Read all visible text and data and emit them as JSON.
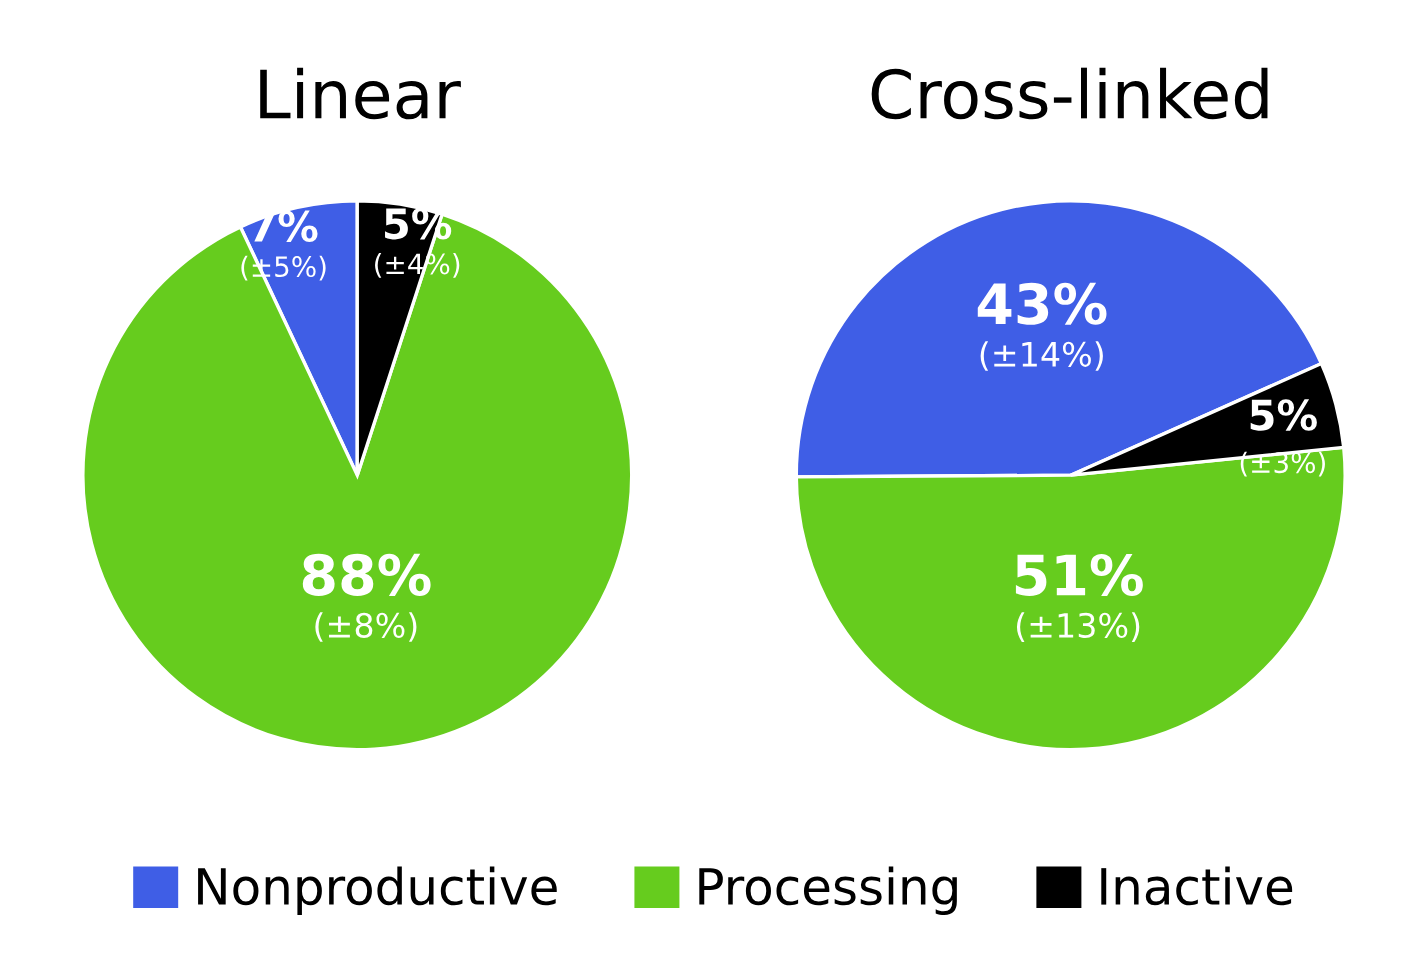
{
  "chart_data": [
    {
      "type": "pie",
      "title": "Linear",
      "categories": [
        "Nonproductive",
        "Processing",
        "Inactive"
      ],
      "values": [
        7,
        88,
        5
      ],
      "value_labels": [
        "7%",
        "88%",
        "5%"
      ],
      "annotations": [
        "(±5%)",
        "(±8%)",
        "(±4%)"
      ],
      "colors": [
        "#3f5ee6",
        "#66cc1e",
        "#000000"
      ],
      "legend": "bottom"
    },
    {
      "type": "pie",
      "title": "Cross-linked",
      "categories": [
        null,
        null,
        null
      ],
      "values": [
        43,
        51,
        5
      ],
      "value_labels": [
        "43%",
        "51%",
        "5%"
      ],
      "annotations": [
        "(±14%)",
        "(±13%)",
        "(±3%)"
      ],
      "colors": [
        "#3f5ee6",
        "#66cc1e",
        "#000000"
      ]
    }
  ]
}
